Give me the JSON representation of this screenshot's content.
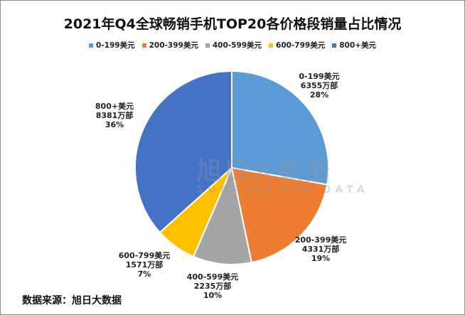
{
  "chart_data": {
    "type": "pie",
    "title": "2021年Q4全球畅销手机TOP20各价格段销量占比情况",
    "unit": "万部",
    "legend_position": "top",
    "slices": [
      {
        "name": "0-199美元",
        "value": 6355,
        "percent": "28%",
        "color": "#5b9bd5"
      },
      {
        "name": "200-399美元",
        "value": 4331,
        "percent": "19%",
        "color": "#ed7d31"
      },
      {
        "name": "400-599美元",
        "value": 2235,
        "percent": "10%",
        "color": "#a5a5a5"
      },
      {
        "name": "600-799美元",
        "value": 1571,
        "percent": "7%",
        "color": "#ffc000"
      },
      {
        "name": "800+美元",
        "value": 8381,
        "percent": "36%",
        "color": "#4472c4"
      }
    ],
    "labels_text": [
      {
        "name": "0-199美元",
        "value": "6355万部",
        "percent": "28%"
      },
      {
        "name": "200-399美元",
        "value": "4331万部",
        "percent": "19%"
      },
      {
        "name": "400-599美元",
        "value": "2235万部",
        "percent": "10%"
      },
      {
        "name": "600-799美元",
        "value": "1571万部",
        "percent": "7%"
      },
      {
        "name": "800+美元",
        "value": "8381万部",
        "percent": "36%"
      }
    ]
  },
  "source": "数据来源：旭日大数据",
  "watermark": {
    "cn": "旭日大数据",
    "en": "SUNRISE BIG DATA"
  }
}
